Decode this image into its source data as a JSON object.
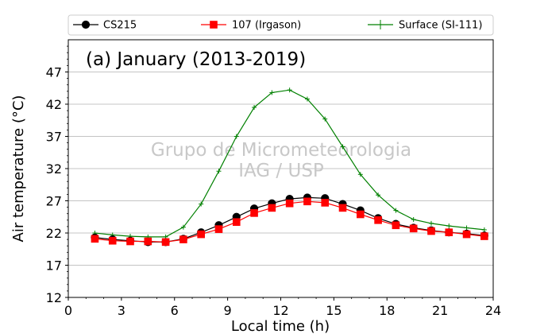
{
  "chart_data": {
    "type": "line",
    "title": "(a) January (2013-2019)",
    "xlabel": "Local time (h)",
    "ylabel": "Air temperature (°C)",
    "xlim": [
      0,
      24
    ],
    "ylim": [
      12,
      52
    ],
    "xticks": [
      0,
      3,
      6,
      9,
      12,
      15,
      18,
      21,
      24
    ],
    "yticks": [
      12,
      17,
      22,
      27,
      32,
      37,
      42,
      47
    ],
    "grid": "horizontal",
    "legend_position": "top, outside plot",
    "watermark": [
      "Grupo de Micrometeorologia",
      "IAG / USP"
    ],
    "x": [
      1.5,
      2.5,
      3.5,
      4.5,
      5.5,
      6.5,
      7.5,
      8.5,
      9.5,
      10.5,
      11.5,
      12.5,
      13.5,
      14.5,
      15.5,
      16.5,
      17.5,
      18.5,
      19.5,
      20.5,
      21.5,
      22.5,
      23.5
    ],
    "series": [
      {
        "name": "CS215",
        "color": "#000000",
        "marker": "circle",
        "values": [
          21.3,
          21.0,
          20.8,
          20.6,
          20.6,
          21.1,
          22.1,
          23.2,
          24.5,
          25.8,
          26.6,
          27.3,
          27.5,
          27.4,
          26.5,
          25.5,
          24.3,
          23.4,
          22.8,
          22.4,
          22.1,
          21.9,
          21.6
        ]
      },
      {
        "name": "107 (Irgason)",
        "color": "#ff0000",
        "marker": "square",
        "values": [
          21.1,
          20.8,
          20.7,
          20.7,
          20.6,
          21.0,
          21.8,
          22.6,
          23.7,
          25.1,
          25.9,
          26.6,
          26.9,
          26.7,
          25.9,
          24.9,
          24.0,
          23.2,
          22.7,
          22.3,
          22.1,
          21.8,
          21.5
        ]
      },
      {
        "name": "Surface (SI-111)",
        "color": "#008000",
        "marker": "plus",
        "values": [
          22.0,
          21.7,
          21.5,
          21.4,
          21.4,
          22.9,
          26.5,
          31.6,
          37.0,
          41.5,
          43.8,
          44.2,
          42.8,
          39.7,
          35.4,
          31.1,
          27.9,
          25.5,
          24.1,
          23.5,
          23.1,
          22.8,
          22.5
        ]
      }
    ]
  }
}
